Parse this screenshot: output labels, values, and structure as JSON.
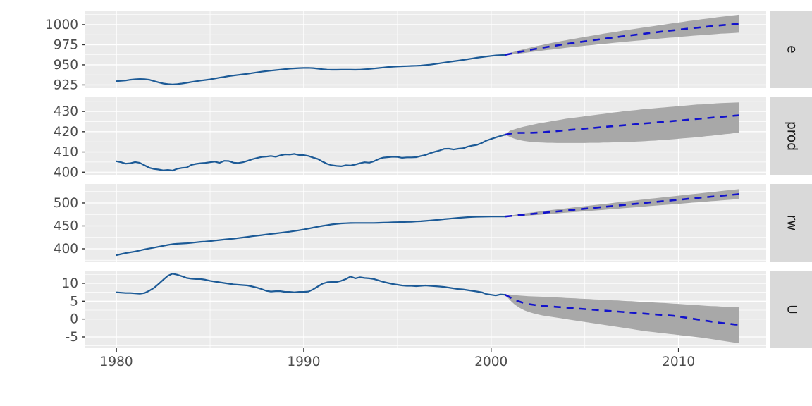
{
  "chart_data": {
    "type": "line",
    "title": "",
    "description": "Faceted quarterly time series with VAR forecasts: history (solid), point forecast (dashed blue), prediction interval (gray band)",
    "x": {
      "ticks": [
        1980,
        1990,
        2000,
        2010
      ],
      "tick_labels": [
        "1980",
        "1990",
        "2000",
        "2010"
      ],
      "minor_step": 10,
      "lim": [
        1978.34,
        2014.68
      ]
    },
    "history_start": 1980.0,
    "forecast_start": 2001.0,
    "step": 0.25,
    "grid": "on",
    "legend_position": "none",
    "facets": [
      {
        "label": "e",
        "yticks": [
          925,
          950,
          975,
          1000
        ],
        "ytick_labels": [
          "925",
          "950",
          "975",
          "1000"
        ],
        "ylim": [
          921.0,
          1017.5
        ],
        "history": [
          929.6,
          930.0,
          930.5,
          931.4,
          932.0,
          932.3,
          932.1,
          931.4,
          929.8,
          928.2,
          926.7,
          925.9,
          925.6,
          926.0,
          926.7,
          927.6,
          928.6,
          929.5,
          930.4,
          931.1,
          931.9,
          932.9,
          934.0,
          934.9,
          935.9,
          936.7,
          937.4,
          938.1,
          938.8,
          939.7,
          940.6,
          941.4,
          942.1,
          942.8,
          943.4,
          944.0,
          944.6,
          945.2,
          945.6,
          945.9,
          946.1,
          946.2,
          945.9,
          945.2,
          944.5,
          944.0,
          943.8,
          943.8,
          943.9,
          944.0,
          943.9,
          943.8,
          944.0,
          944.4,
          944.9,
          945.4,
          946.0,
          946.6,
          947.2,
          947.6,
          947.9,
          948.2,
          948.4,
          948.6,
          948.8,
          949.1,
          949.6,
          950.2,
          951.0,
          951.9,
          952.8,
          953.6,
          954.4,
          955.2,
          956.1,
          957.0,
          957.9,
          958.8,
          959.6,
          960.4,
          961.1,
          961.7,
          962.1,
          962.4
        ],
        "forecast": {
          "mean": [
            963.6,
            964.8,
            966.0,
            967.1,
            968.2,
            969.3,
            970.3,
            971.3,
            972.3,
            973.2,
            974.1,
            975.0,
            975.9,
            976.8,
            977.6,
            978.4,
            979.2,
            980.0,
            980.8,
            981.6,
            982.4,
            983.1,
            983.9,
            984.6,
            985.4,
            986.1,
            986.8,
            987.5,
            988.2,
            988.9,
            989.6,
            990.3,
            991.0,
            991.7,
            992.4,
            993.0,
            993.7,
            994.3,
            995.0,
            995.6,
            996.2,
            996.8,
            997.4,
            998.0,
            998.6,
            999.2,
            999.7,
            1000.2,
            1000.7,
            1001.2
          ],
          "half": [
            1.1,
            1.6,
            2.0,
            2.4,
            2.7,
            3.0,
            3.3,
            3.6,
            3.8,
            4.1,
            4.3,
            4.5,
            4.7,
            4.9,
            5.1,
            5.3,
            5.5,
            5.7,
            5.9,
            6.1,
            6.3,
            6.5,
            6.7,
            6.8,
            7.0,
            7.2,
            7.4,
            7.5,
            7.7,
            7.9,
            8.0,
            8.2,
            8.4,
            8.5,
            8.7,
            8.9,
            9.0,
            9.2,
            9.4,
            9.5,
            9.7,
            9.9,
            10.0,
            10.2,
            10.4,
            10.5,
            10.7,
            10.9,
            11.0,
            11.2
          ]
        }
      },
      {
        "label": "prod",
        "yticks": [
          400,
          410,
          420,
          430
        ],
        "ytick_labels": [
          "400",
          "410",
          "420",
          "430"
        ],
        "ylim": [
          398.7,
          437.0
        ],
        "history": [
          405.4,
          404.9,
          404.2,
          404.4,
          405.0,
          404.6,
          403.4,
          402.2,
          401.6,
          401.3,
          400.9,
          401.1,
          400.8,
          401.7,
          402.1,
          402.3,
          403.6,
          404.1,
          404.4,
          404.6,
          404.9,
          405.2,
          404.6,
          405.6,
          405.5,
          404.7,
          404.5,
          404.9,
          405.6,
          406.4,
          407.0,
          407.5,
          407.7,
          408.0,
          407.6,
          408.3,
          408.8,
          408.7,
          409.0,
          408.5,
          408.4,
          408.0,
          407.2,
          406.5,
          405.2,
          404.1,
          403.4,
          403.1,
          402.9,
          403.4,
          403.3,
          403.8,
          404.4,
          404.9,
          404.7,
          405.4,
          406.5,
          407.2,
          407.4,
          407.6,
          407.5,
          407.1,
          407.3,
          407.3,
          407.4,
          408.0,
          408.5,
          409.4,
          410.1,
          410.7,
          411.5,
          411.6,
          411.2,
          411.6,
          411.8,
          412.6,
          413.1,
          413.5,
          414.4,
          415.6,
          416.4,
          417.2,
          417.9,
          418.5
        ],
        "forecast": {
          "mean": [
            419.0,
            419.3,
            419.4,
            419.4,
            419.4,
            419.5,
            419.6,
            419.7,
            419.9,
            420.1,
            420.3,
            420.5,
            420.7,
            420.9,
            421.1,
            421.3,
            421.5,
            421.7,
            421.9,
            422.1,
            422.3,
            422.5,
            422.7,
            422.9,
            423.1,
            423.3,
            423.5,
            423.7,
            423.9,
            424.1,
            424.3,
            424.5,
            424.7,
            424.9,
            425.1,
            425.3,
            425.5,
            425.7,
            425.9,
            426.1,
            426.3,
            426.5,
            426.7,
            426.9,
            427.1,
            427.3,
            427.5,
            427.7,
            427.9,
            428.1
          ],
          "upper": [
            420.5,
            421.2,
            421.9,
            422.5,
            423.0,
            423.5,
            424.0,
            424.4,
            424.8,
            425.2,
            425.6,
            426.0,
            426.4,
            426.7,
            427.0,
            427.3,
            427.6,
            427.9,
            428.2,
            428.5,
            428.8,
            429.1,
            429.4,
            429.7,
            430.0,
            430.2,
            430.5,
            430.7,
            431.0,
            431.2,
            431.4,
            431.6,
            431.8,
            432.0,
            432.2,
            432.4,
            432.6,
            432.8,
            433.0,
            433.2,
            433.4,
            433.5,
            433.7,
            433.8,
            434.0,
            434.1,
            434.2,
            434.3,
            434.4,
            434.5
          ],
          "lower": [
            417.4,
            416.5,
            415.9,
            415.4,
            415.1,
            414.9,
            414.7,
            414.6,
            414.5,
            414.5,
            414.4,
            414.4,
            414.4,
            414.4,
            414.4,
            414.4,
            414.4,
            414.5,
            414.5,
            414.5,
            414.6,
            414.6,
            414.7,
            414.7,
            414.8,
            414.9,
            415.0,
            415.1,
            415.2,
            415.3,
            415.5,
            415.6,
            415.8,
            415.9,
            416.1,
            416.3,
            416.5,
            416.7,
            416.9,
            417.1,
            417.3,
            417.5,
            417.8,
            418.0,
            418.3,
            418.5,
            418.8,
            419.0,
            419.3,
            419.5
          ]
        }
      },
      {
        "label": "rw",
        "yticks": [
          400,
          450,
          500
        ],
        "ytick_labels": [
          "400",
          "450",
          "500"
        ],
        "ylim": [
          372.3,
          541.5
        ],
        "history": [
          386.1,
          388.4,
          390.6,
          392.5,
          394.1,
          396.4,
          398.8,
          400.6,
          402.5,
          404.5,
          406.5,
          408.4,
          410.1,
          410.9,
          411.5,
          412.1,
          413.1,
          414.1,
          415.2,
          415.9,
          416.8,
          418.0,
          419.1,
          420.2,
          421.2,
          422.2,
          423.3,
          424.6,
          426.0,
          427.3,
          428.6,
          429.9,
          431.2,
          432.5,
          433.7,
          434.9,
          436.1,
          437.4,
          438.9,
          440.5,
          442.2,
          444.1,
          446.1,
          448.1,
          450.0,
          451.7,
          453.2,
          454.4,
          455.3,
          455.9,
          456.3,
          456.5,
          456.5,
          456.5,
          456.4,
          456.5,
          456.7,
          457.0,
          457.4,
          457.8,
          458.1,
          458.4,
          458.7,
          459.1,
          459.6,
          460.2,
          460.9,
          461.8,
          462.7,
          463.7,
          464.7,
          465.7,
          466.6,
          467.5,
          468.3,
          469.0,
          469.5,
          469.9,
          470.1,
          470.3,
          470.4,
          470.4,
          470.4,
          470.5
        ],
        "forecast": {
          "mean": [
            471.5,
            472.5,
            473.5,
            474.5,
            475.5,
            476.5,
            477.5,
            478.5,
            479.5,
            480.5,
            481.5,
            482.5,
            483.5,
            484.5,
            485.5,
            486.5,
            487.5,
            488.5,
            489.4,
            490.4,
            491.4,
            492.4,
            493.4,
            494.4,
            495.4,
            496.4,
            497.3,
            498.3,
            499.3,
            500.3,
            501.3,
            502.2,
            503.2,
            504.2,
            505.1,
            506.1,
            507.1,
            508.0,
            509.0,
            510.0,
            510.9,
            511.9,
            512.8,
            513.8,
            514.7,
            515.7,
            516.6,
            517.6,
            518.5,
            519.5
          ],
          "half": [
            1.3,
            1.8,
            2.2,
            2.6,
            2.9,
            3.2,
            3.5,
            3.7,
            4.0,
            4.2,
            4.4,
            4.6,
            4.8,
            5.0,
            5.2,
            5.4,
            5.6,
            5.8,
            6.0,
            6.2,
            6.4,
            6.5,
            6.7,
            6.9,
            7.0,
            7.2,
            7.4,
            7.5,
            7.7,
            7.8,
            8.0,
            8.1,
            8.3,
            8.4,
            8.6,
            8.7,
            8.9,
            9.0,
            9.2,
            9.3,
            9.5,
            9.6,
            9.8,
            9.9,
            10.1,
            10.2,
            10.4,
            10.5,
            10.7,
            10.8
          ]
        }
      },
      {
        "label": "U",
        "yticks": [
          -5,
          0,
          5,
          10
        ],
        "ytick_labels": [
          "-5",
          "0",
          "5",
          "10"
        ],
        "ylim": [
          -8.16,
          13.55
        ],
        "history": [
          7.5,
          7.4,
          7.3,
          7.3,
          7.2,
          7.1,
          7.3,
          7.9,
          8.7,
          9.8,
          11.0,
          12.1,
          12.7,
          12.4,
          12.0,
          11.5,
          11.3,
          11.2,
          11.2,
          11.0,
          10.7,
          10.5,
          10.3,
          10.1,
          9.9,
          9.7,
          9.6,
          9.5,
          9.4,
          9.1,
          8.8,
          8.4,
          7.9,
          7.7,
          7.8,
          7.8,
          7.6,
          7.6,
          7.5,
          7.6,
          7.6,
          7.7,
          8.3,
          9.1,
          9.9,
          10.3,
          10.4,
          10.4,
          10.7,
          11.2,
          11.9,
          11.4,
          11.7,
          11.5,
          11.4,
          11.2,
          10.8,
          10.4,
          10.1,
          9.8,
          9.6,
          9.4,
          9.3,
          9.3,
          9.2,
          9.3,
          9.4,
          9.3,
          9.2,
          9.1,
          9.0,
          8.8,
          8.6,
          8.4,
          8.3,
          8.1,
          7.9,
          7.7,
          7.5,
          7.0,
          6.8,
          6.6,
          6.9,
          6.8
        ],
        "forecast": {
          "mean": [
            6.1,
            5.4,
            4.9,
            4.5,
            4.2,
            4.0,
            3.8,
            3.7,
            3.6,
            3.5,
            3.4,
            3.3,
            3.2,
            3.1,
            3.0,
            2.9,
            2.8,
            2.7,
            2.6,
            2.5,
            2.4,
            2.3,
            2.2,
            2.1,
            2.0,
            1.9,
            1.8,
            1.7,
            1.6,
            1.5,
            1.4,
            1.3,
            1.2,
            1.1,
            1.0,
            0.9,
            0.7,
            0.5,
            0.3,
            0.1,
            -0.1,
            -0.3,
            -0.5,
            -0.7,
            -0.9,
            -1.05,
            -1.2,
            -1.35,
            -1.5,
            -1.6
          ],
          "upper": [
            6.9,
            6.7,
            6.6,
            6.5,
            6.4,
            6.35,
            6.3,
            6.25,
            6.2,
            6.1,
            6.05,
            6.0,
            5.9,
            5.85,
            5.8,
            5.7,
            5.65,
            5.6,
            5.5,
            5.45,
            5.4,
            5.3,
            5.25,
            5.2,
            5.1,
            5.05,
            5.0,
            4.9,
            4.85,
            4.8,
            4.7,
            4.6,
            4.55,
            4.5,
            4.4,
            4.3,
            4.25,
            4.15,
            4.05,
            3.95,
            3.9,
            3.8,
            3.7,
            3.65,
            3.6,
            3.5,
            3.45,
            3.4,
            3.35,
            3.3
          ],
          "lower": [
            5.3,
            4.1,
            3.2,
            2.5,
            2.0,
            1.6,
            1.3,
            1.0,
            0.8,
            0.6,
            0.4,
            0.2,
            0.0,
            -0.2,
            -0.4,
            -0.6,
            -0.8,
            -1.0,
            -1.2,
            -1.4,
            -1.6,
            -1.8,
            -2.0,
            -2.2,
            -2.4,
            -2.6,
            -2.8,
            -3.0,
            -3.2,
            -3.4,
            -3.55,
            -3.7,
            -3.85,
            -4.0,
            -4.15,
            -4.3,
            -4.45,
            -4.6,
            -4.75,
            -4.9,
            -5.05,
            -5.2,
            -5.4,
            -5.6,
            -5.8,
            -6.0,
            -6.2,
            -6.4,
            -6.6,
            -6.8
          ]
        }
      }
    ]
  },
  "colors": {
    "page_bg": "#FFFFFF",
    "panel_bg": "#EBEBEB",
    "grid": "#FFFFFF",
    "strip_bg": "#D9D9D9",
    "strip_text": "#1A1A1A",
    "axis_text": "#4D4D4D",
    "tick_mark": "#333333",
    "history_line": "#1C5A96",
    "forecast_line": "#1212CC",
    "band": "#A8A8A8"
  }
}
